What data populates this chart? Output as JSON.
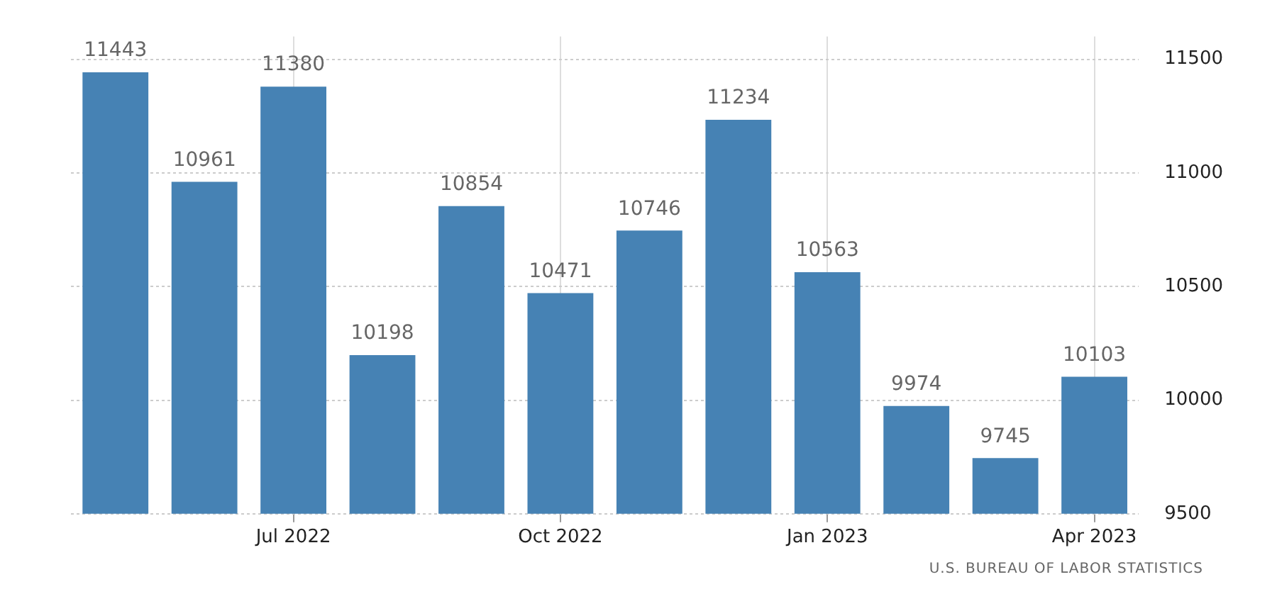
{
  "chart_data": {
    "type": "bar",
    "categories": [
      null,
      null,
      "Jul 2022",
      null,
      null,
      "Oct 2022",
      null,
      null,
      "Jan 2023",
      null,
      null,
      "Apr 2023"
    ],
    "values": [
      11443,
      10961,
      11380,
      10198,
      10854,
      10471,
      10746,
      11234,
      10563,
      9974,
      9745,
      10103
    ],
    "color": "#4682b4",
    "ylim": [
      9500,
      11600
    ],
    "yticks": [
      9500,
      10000,
      10500,
      11000,
      11500
    ],
    "grid": true,
    "data_labels": true,
    "annotations": [
      "U.S. BUREAU OF LABOR STATISTICS"
    ]
  }
}
